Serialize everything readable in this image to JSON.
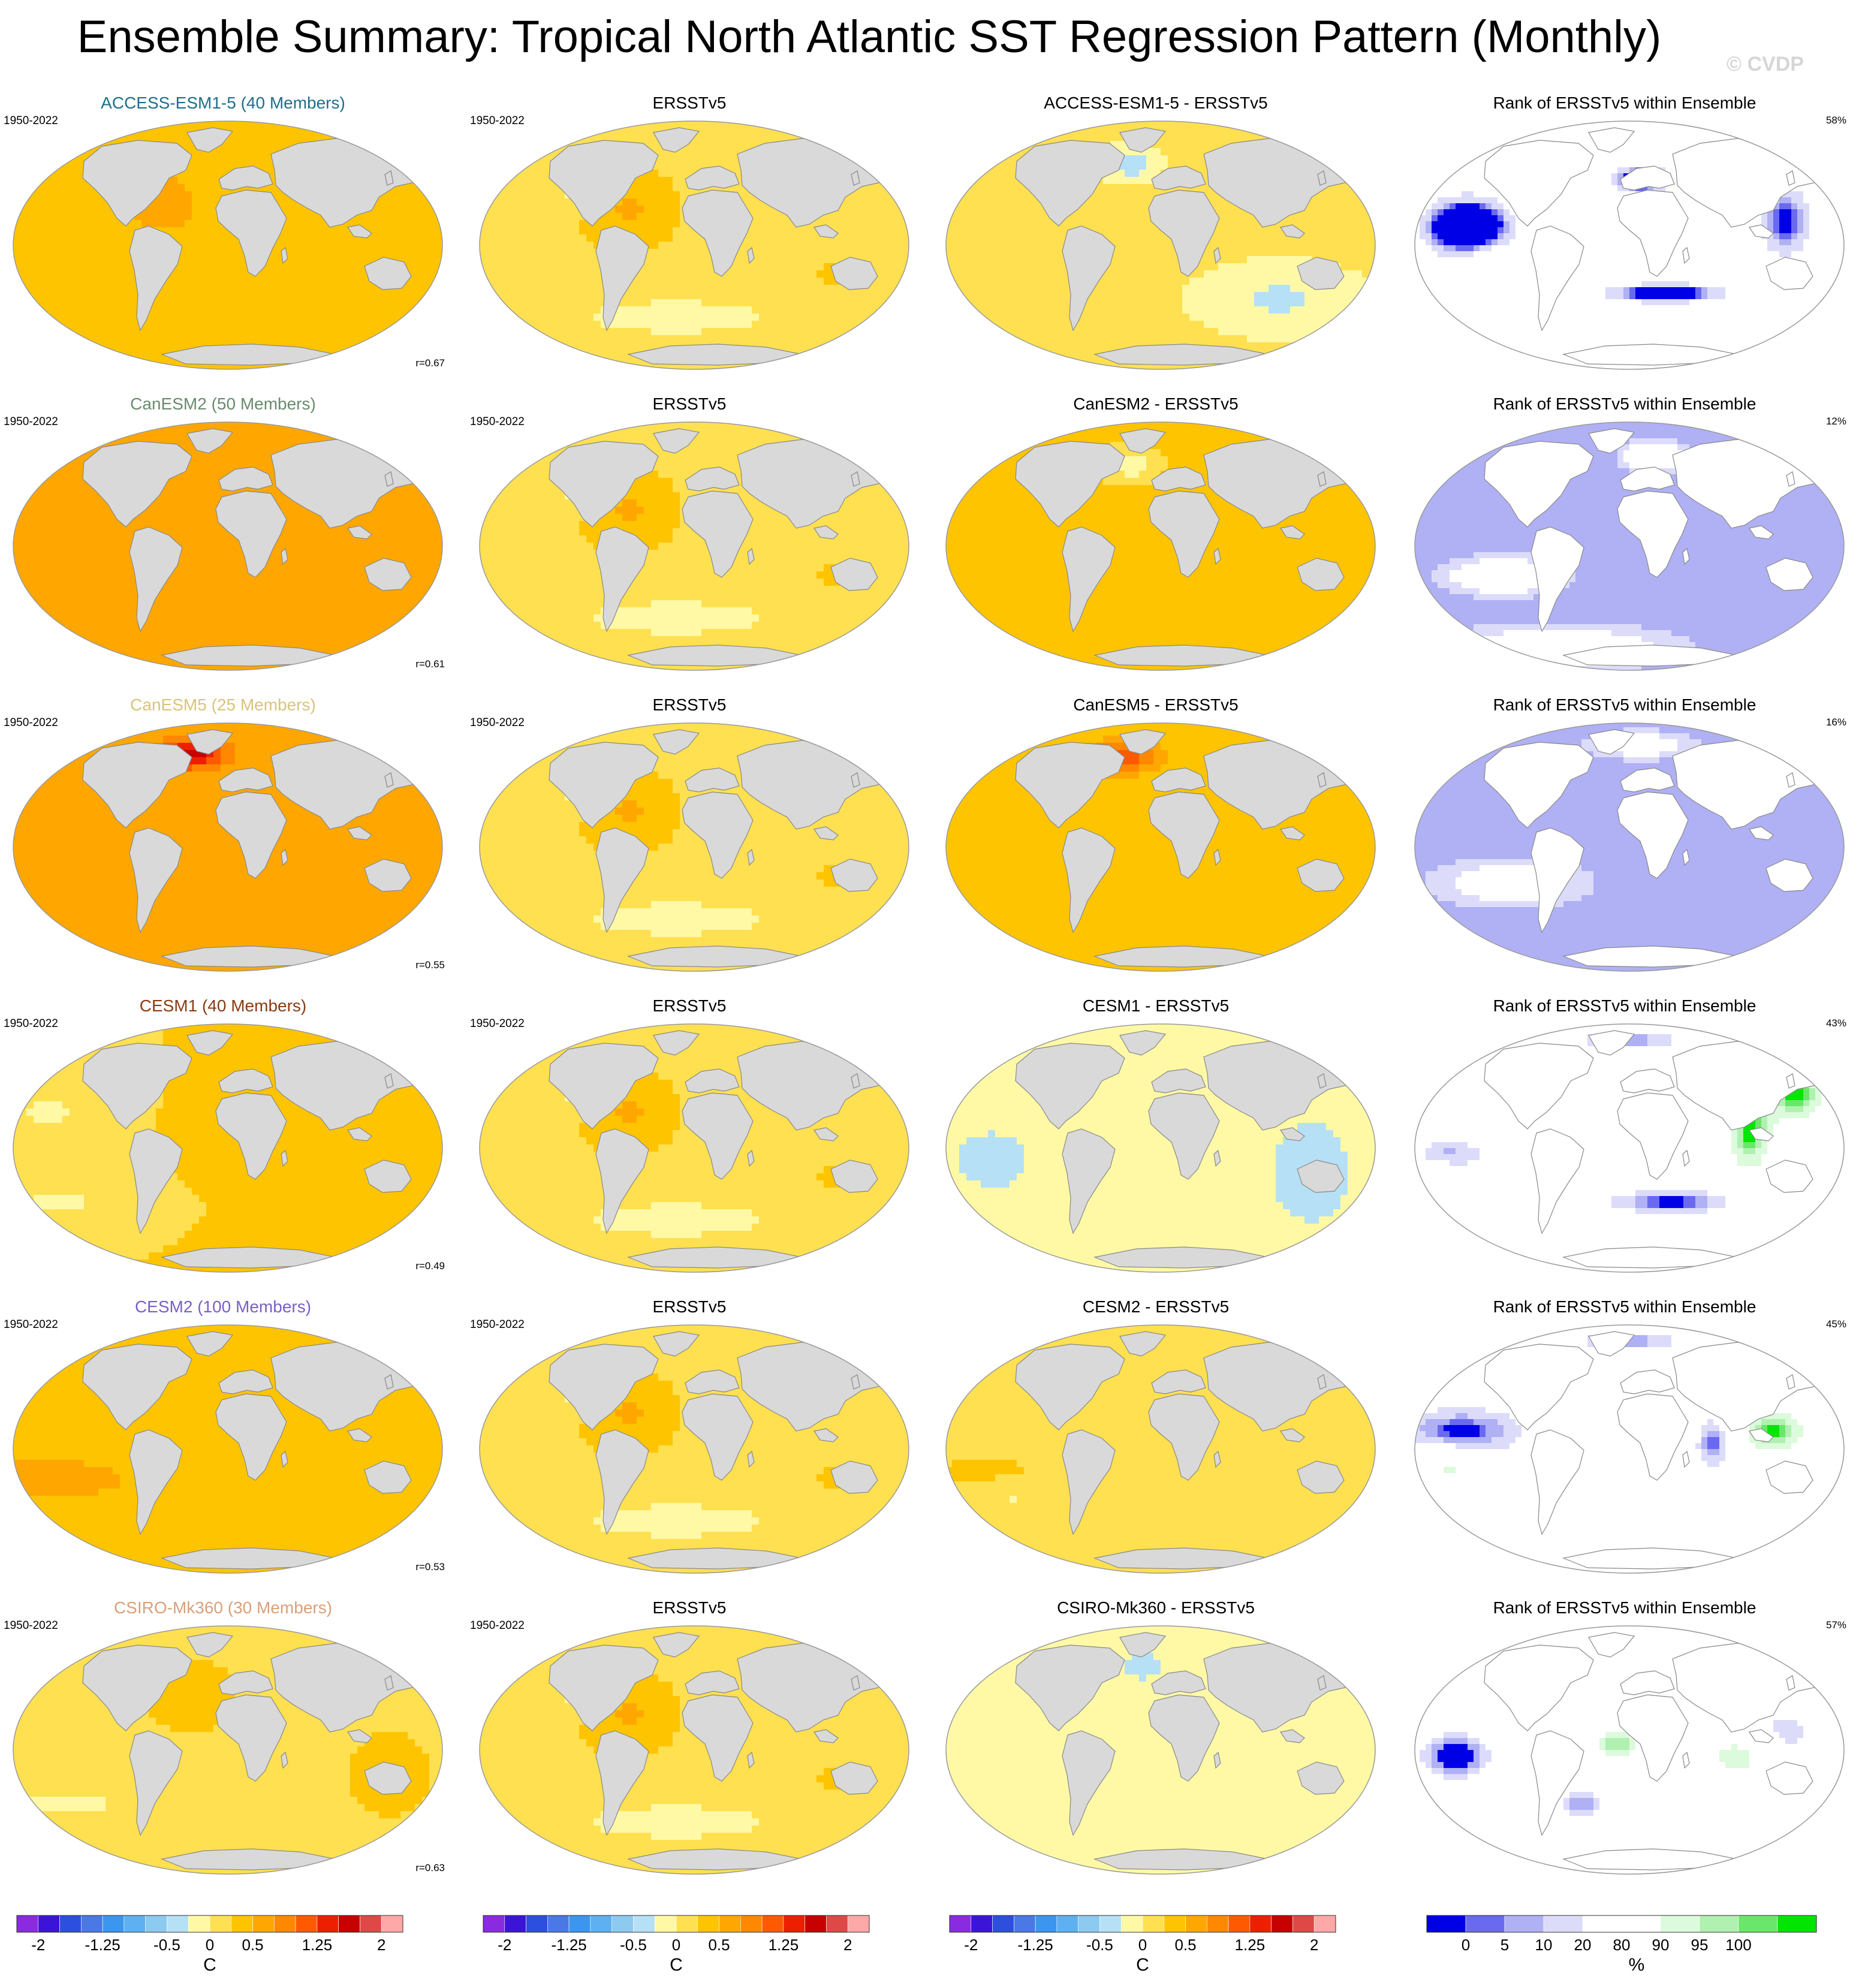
{
  "title": "Ensemble Summary: Tropical North Atlantic SST Regression Pattern (Monthly)",
  "copyright": "© CVDP",
  "period_label": "1950-2022",
  "observation_label": "ERSSTv5",
  "rank_label": "Rank of ERSSTv5 within Ensemble",
  "rows": [
    {
      "model_label": "ACCESS-ESM1-5 (40 Members)",
      "model_color": "#1c6f8c",
      "diff_label": "ACCESS-ESM1-5 - ERSSTv5",
      "pattern_corr": "r=0.67",
      "rank_pct": "58%"
    },
    {
      "model_label": "CanESM2 (50 Members)",
      "model_color": "#6a8a6e",
      "diff_label": "CanESM2 - ERSSTv5",
      "pattern_corr": "r=0.61",
      "rank_pct": "12%"
    },
    {
      "model_label": "CanESM5 (25 Members)",
      "model_color": "#d9c47a",
      "diff_label": "CanESM5 - ERSSTv5",
      "pattern_corr": "r=0.55",
      "rank_pct": "16%"
    },
    {
      "model_label": "CESM1 (40 Members)",
      "model_color": "#8a3b12",
      "diff_label": "CESM1 - ERSSTv5",
      "pattern_corr": "r=0.49",
      "rank_pct": "43%"
    },
    {
      "model_label": "CESM2 (100 Members)",
      "model_color": "#7b5ec9",
      "diff_label": "CESM2 - ERSSTv5",
      "pattern_corr": "r=0.53",
      "rank_pct": "45%"
    },
    {
      "model_label": "CSIRO-Mk360 (30 Members)",
      "model_color": "#d9a07a",
      "diff_label": "CSIRO-Mk360 - ERSSTv5",
      "pattern_corr": "r=0.63",
      "rank_pct": "57%"
    }
  ],
  "colorbars": {
    "sst": {
      "unit": "C",
      "ticks": [
        "-2",
        "-1.25",
        "-0.5",
        "0",
        "0.5",
        "1.25",
        "2"
      ],
      "colors": [
        "#8a2be2",
        "#3c14d9",
        "#2d4fe0",
        "#4a79e6",
        "#3c96f0",
        "#5fb0f0",
        "#8ccaf0",
        "#b6e0f5",
        "#fff9a6",
        "#ffe050",
        "#ffc400",
        "#ffa700",
        "#ff8800",
        "#ff5a00",
        "#ee1f00",
        "#c80000",
        "#e04848",
        "#ffa8a8"
      ]
    },
    "rank": {
      "unit": "%",
      "ticks": [
        "0",
        "5",
        "10",
        "20",
        "80",
        "90",
        "95",
        "100"
      ],
      "colors": [
        "#0000e6",
        "#6a6af0",
        "#b0b0f5",
        "#dcdcfa",
        "#ffffff",
        "#ffffff",
        "#dcfadc",
        "#b0f0b0",
        "#6ae66a",
        "#00e600"
      ]
    }
  },
  "chart_data": [
    {
      "type": "heatmap",
      "map_projection": "Robinson",
      "row_titles": "per row model_label",
      "column": "model regression (C per std. dev.)"
    },
    {
      "type": "heatmap",
      "map_projection": "Robinson",
      "column": "ERSSTv5 observed regression (C)"
    },
    {
      "type": "heatmap",
      "map_projection": "Robinson",
      "column": "model minus ERSSTv5 difference (C)"
    },
    {
      "type": "heatmap",
      "map_projection": "Robinson",
      "column": "rank of ERSSTv5 within ensemble (%)",
      "scale": [
        0,
        100
      ]
    }
  ]
}
